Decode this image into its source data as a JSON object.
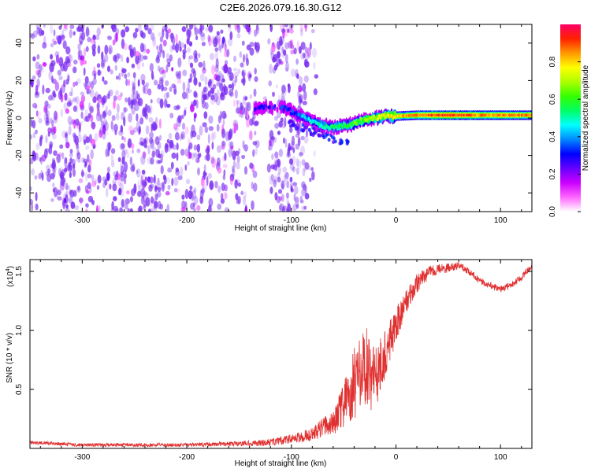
{
  "figure_title": "C2E6.2026.079.16.30.G12",
  "colors": {
    "signal": "#e03030",
    "speckle": "#7a2df0",
    "colormap": [
      "#ffffff",
      "#ff66ff",
      "#cc00ff",
      "#6600ff",
      "#0000ff",
      "#0088ff",
      "#00ffff",
      "#00ff66",
      "#33ff00",
      "#aaff00",
      "#ffff00",
      "#ff9900",
      "#ff2200",
      "#ff0066"
    ]
  },
  "chart_data": [
    {
      "type": "heatmap",
      "title": "",
      "xlabel": "Height of straight line (km)",
      "ylabel": "Frequency (Hz)",
      "xlim": [
        -350,
        130
      ],
      "ylim": [
        -50,
        50
      ],
      "xticks": [
        -300,
        -200,
        -100,
        0,
        100
      ],
      "xtick_labels": [
        "-300",
        "-200",
        "-100",
        "0",
        "100"
      ],
      "yticks": [
        -40,
        -20,
        0,
        20,
        40
      ],
      "ytick_labels": [
        "-40",
        "-20",
        "0",
        "20",
        "40"
      ],
      "grid": false,
      "colorbar": {
        "label": "Normalized spectral amplitude",
        "range": [
          0,
          1
        ],
        "ticks": [
          0.0,
          0.2,
          0.4,
          0.6,
          0.8
        ],
        "tick_labels": [
          "0.0",
          "0.2",
          "0.4",
          "0.6",
          "0.8"
        ]
      },
      "noise_region": {
        "x_range": [
          -350,
          -85
        ],
        "amplitude": [
          0.05,
          0.25
        ],
        "gap": [
          -132,
          -122
        ]
      },
      "signal_trace": {
        "x": [
          -135,
          -120,
          -105,
          -95,
          -90,
          -80,
          -70,
          -60,
          -50,
          -40,
          -30,
          -20,
          -10,
          0,
          20,
          40,
          60,
          80,
          100,
          130
        ],
        "freq": [
          5,
          6,
          5,
          2,
          1,
          -2,
          -4,
          -5,
          -4,
          -3,
          -1,
          0,
          1,
          1,
          1.5,
          1.5,
          1.5,
          1.5,
          1.5,
          1.5
        ],
        "amplitude": [
          0.25,
          0.3,
          0.3,
          0.35,
          0.4,
          0.45,
          0.5,
          0.55,
          0.55,
          0.6,
          0.65,
          0.7,
          0.75,
          0.8,
          0.85,
          0.9,
          0.9,
          0.85,
          0.85,
          0.85
        ]
      },
      "secondary_branch": {
        "x": [
          -105,
          -90,
          -75,
          -60,
          -45
        ],
        "freq": [
          -2,
          -5,
          -8,
          -11,
          -14
        ]
      }
    },
    {
      "type": "line",
      "title": "",
      "xlabel": "Height of straight line (km)",
      "ylabel": "SNR (10 * v/v)",
      "scale_label": "(x10",
      "scale_exponent": "4",
      "xlim": [
        -350,
        130
      ],
      "ylim": [
        0,
        1.6
      ],
      "xticks": [
        -300,
        -200,
        -100,
        0,
        100
      ],
      "xtick_labels": [
        "-300",
        "-200",
        "-100",
        "0",
        "100"
      ],
      "yticks": [
        0.5,
        1.0,
        1.5
      ],
      "ytick_labels": [
        "0.5",
        "1.0",
        "1.5"
      ],
      "grid": false,
      "series": [
        {
          "name": "SNR",
          "x": [
            -350,
            -300,
            -250,
            -200,
            -150,
            -120,
            -100,
            -80,
            -70,
            -60,
            -50,
            -45,
            -40,
            -30,
            -20,
            -10,
            0,
            10,
            20,
            30,
            40,
            50,
            60,
            70,
            80,
            90,
            100,
            110,
            120,
            130
          ],
          "values": [
            0.05,
            0.03,
            0.03,
            0.03,
            0.04,
            0.05,
            0.08,
            0.12,
            0.18,
            0.22,
            0.35,
            0.45,
            0.55,
            0.7,
            0.6,
            0.8,
            1.05,
            1.25,
            1.4,
            1.48,
            1.52,
            1.53,
            1.55,
            1.5,
            1.42,
            1.38,
            1.35,
            1.38,
            1.45,
            1.55
          ],
          "noise": [
            0.015,
            0.015,
            0.015,
            0.015,
            0.02,
            0.03,
            0.04,
            0.06,
            0.08,
            0.1,
            0.2,
            0.25,
            0.3,
            0.35,
            0.3,
            0.2,
            0.15,
            0.1,
            0.08,
            0.06,
            0.04,
            0.04,
            0.03,
            0.03,
            0.03,
            0.03,
            0.03,
            0.03,
            0.03,
            0.03
          ]
        }
      ]
    }
  ]
}
